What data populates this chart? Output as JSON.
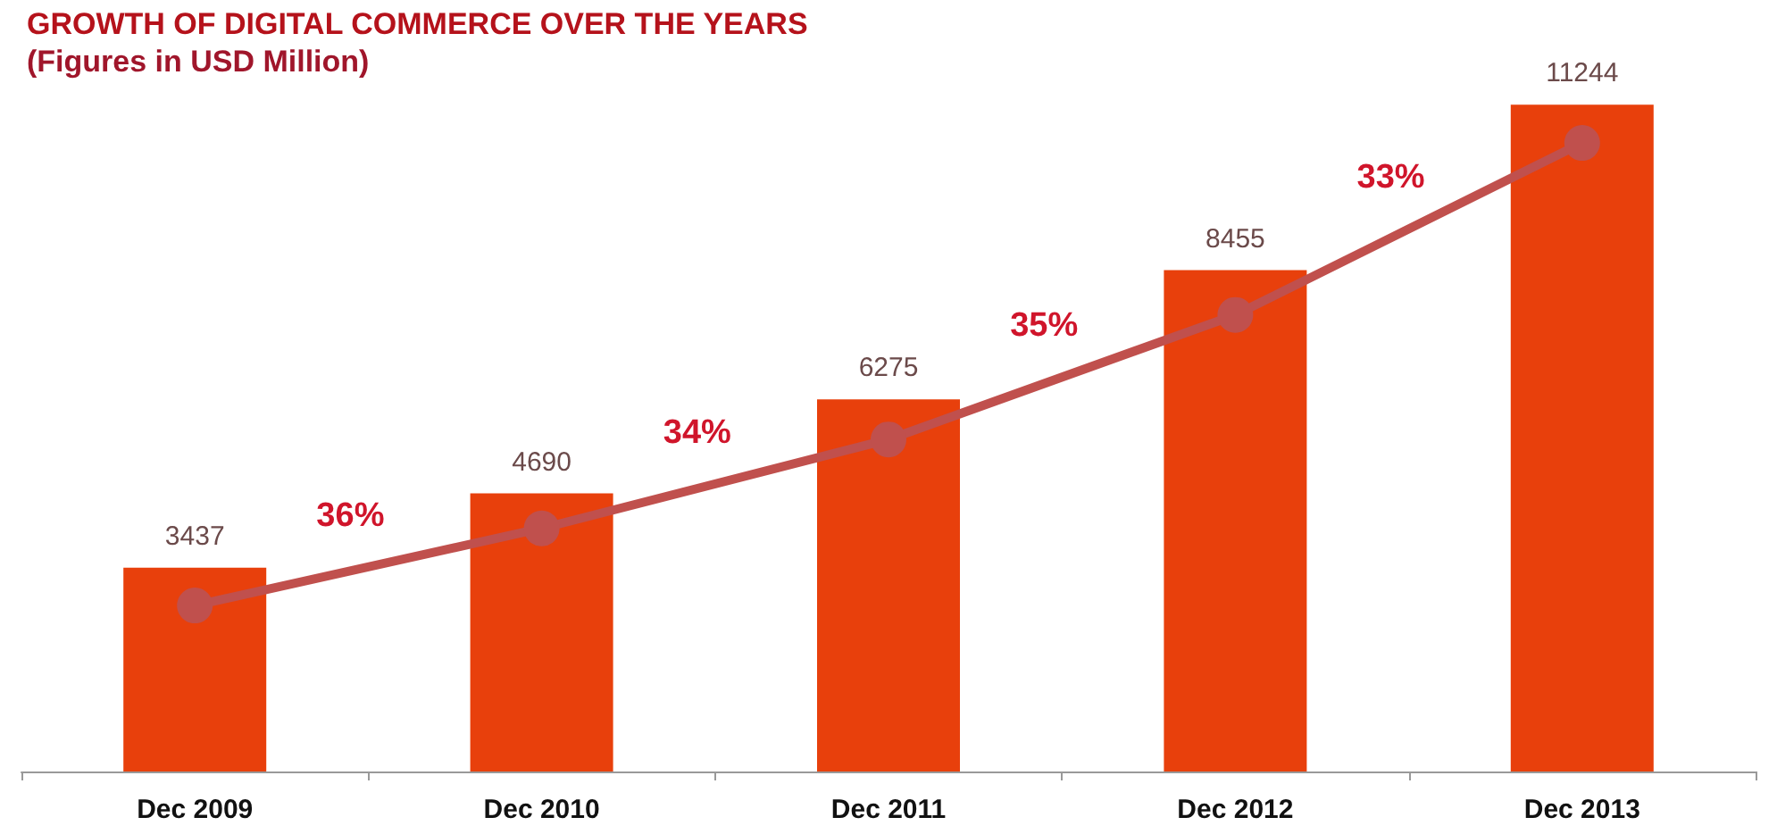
{
  "chart_data": {
    "type": "bar",
    "title": "GROWTH OF DIGITAL COMMERCE OVER THE YEARS",
    "subtitle": "(Figures in USD Million)",
    "categories": [
      "Dec 2009",
      "Dec 2010",
      "Dec 2011",
      "Dec 2012",
      "Dec 2013"
    ],
    "series": [
      {
        "color": "#e8400c",
        "values": [
          3437,
          4690,
          6275,
          8455,
          11244
        ],
        "data_labels": true
      },
      {
        "type": "line",
        "color": "#c0504d",
        "values": [
          2800,
          4100,
          5600,
          7700,
          10600
        ],
        "marker": "circle"
      }
    ],
    "annotations": [
      "36%",
      "34%",
      "35%",
      "33%"
    ]
  }
}
